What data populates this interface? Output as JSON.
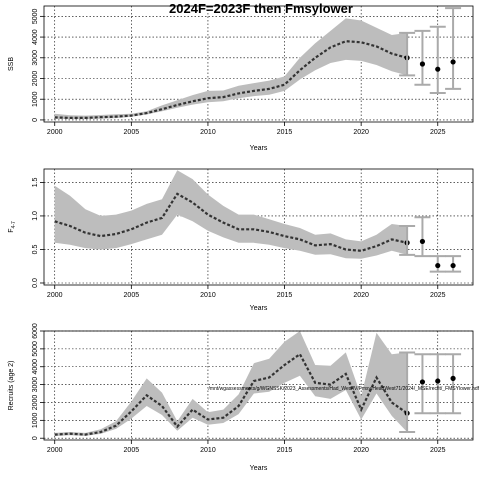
{
  "figure_title": "2024F=2023F then Fmsylower",
  "chart_data": [
    {
      "type": "line",
      "title": "",
      "xlabel": "Years",
      "ylabel": "SSB",
      "xlim": [
        1999.3,
        2027.3
      ],
      "ylim": [
        -100,
        5500
      ],
      "xticks": [
        2000,
        2005,
        2010,
        2015,
        2020,
        2025
      ],
      "yticks": [
        0,
        1000,
        2000,
        3000,
        4000,
        5000
      ],
      "grid": true,
      "x": [
        2000,
        2001,
        2002,
        2003,
        2004,
        2005,
        2006,
        2007,
        2008,
        2009,
        2010,
        2011,
        2012,
        2013,
        2014,
        2015,
        2016,
        2017,
        2018,
        2019,
        2020,
        2021,
        2022,
        2023
      ],
      "series": [
        {
          "role": "estimate",
          "values": [
            120,
            100,
            100,
            130,
            160,
            210,
            330,
            520,
            720,
            900,
            1050,
            1100,
            1280,
            1400,
            1500,
            1700,
            2400,
            3000,
            3500,
            3800,
            3750,
            3550,
            3200,
            3000
          ]
        },
        {
          "role": "lower",
          "values": [
            50,
            40,
            40,
            60,
            90,
            150,
            260,
            420,
            590,
            740,
            850,
            900,
            1050,
            1150,
            1220,
            1400,
            1950,
            2400,
            2750,
            2900,
            2850,
            2650,
            2350,
            2150
          ]
        },
        {
          "role": "upper",
          "values": [
            300,
            230,
            210,
            240,
            270,
            300,
            420,
            700,
            950,
            1200,
            1400,
            1420,
            1650,
            1780,
            1900,
            2100,
            3000,
            3700,
            4300,
            4900,
            4800,
            4450,
            4100,
            4200
          ]
        }
      ],
      "projection": [
        {
          "year": 2024,
          "value": 2700,
          "lower": 1700,
          "upper": 4300
        },
        {
          "year": 2025,
          "value": 2450,
          "lower": 1300,
          "upper": 4500
        },
        {
          "year": 2026,
          "value": 2800,
          "lower": 1500,
          "upper": 5400
        }
      ],
      "annotation": ""
    },
    {
      "type": "line",
      "title": "",
      "xlabel": "Years",
      "ylabel": "F",
      "ylabel_sub": "4-7",
      "xlim": [
        1999.3,
        2027.3
      ],
      "ylim": [
        -0.03,
        1.7
      ],
      "xticks": [
        2000,
        2005,
        2010,
        2015,
        2020,
        2025
      ],
      "yticks": [
        0.0,
        0.5,
        1.0,
        1.5
      ],
      "ytick_labels": [
        "0.0",
        "0.5",
        "1.0",
        "1.5"
      ],
      "grid": true,
      "x": [
        2000,
        2001,
        2002,
        2003,
        2004,
        2005,
        2006,
        2007,
        2008,
        2009,
        2010,
        2011,
        2012,
        2013,
        2014,
        2015,
        2016,
        2017,
        2018,
        2019,
        2020,
        2021,
        2022,
        2023
      ],
      "series": [
        {
          "role": "estimate",
          "values": [
            0.92,
            0.85,
            0.75,
            0.7,
            0.73,
            0.8,
            0.9,
            0.97,
            1.33,
            1.2,
            1.02,
            0.9,
            0.8,
            0.8,
            0.76,
            0.7,
            0.65,
            0.56,
            0.58,
            0.5,
            0.48,
            0.55,
            0.65,
            0.6
          ]
        },
        {
          "role": "lower",
          "values": [
            0.6,
            0.57,
            0.52,
            0.5,
            0.52,
            0.58,
            0.65,
            0.72,
            1.02,
            0.92,
            0.78,
            0.68,
            0.6,
            0.6,
            0.57,
            0.52,
            0.48,
            0.42,
            0.43,
            0.37,
            0.36,
            0.41,
            0.48,
            0.42
          ]
        },
        {
          "role": "upper",
          "values": [
            1.45,
            1.3,
            1.1,
            1.0,
            1.02,
            1.08,
            1.18,
            1.25,
            1.68,
            1.55,
            1.32,
            1.15,
            1.02,
            1.02,
            0.95,
            0.88,
            0.82,
            0.72,
            0.74,
            0.65,
            0.62,
            0.72,
            0.88,
            0.85
          ]
        }
      ],
      "projection": [
        {
          "year": 2024,
          "value": 0.62,
          "lower": 0.4,
          "upper": 0.98
        },
        {
          "year": 2025,
          "value": 0.26,
          "lower": 0.17,
          "upper": 0.4
        },
        {
          "year": 2026,
          "value": 0.26,
          "lower": 0.17,
          "upper": 0.4
        }
      ],
      "annotation": ""
    },
    {
      "type": "line",
      "title": "",
      "xlabel": "Years",
      "ylabel": "Recruits (age 2)",
      "xlim": [
        1999.3,
        2027.3
      ],
      "ylim": [
        -100,
        6000
      ],
      "xticks": [
        2000,
        2005,
        2010,
        2015,
        2020,
        2025
      ],
      "yticks": [
        0,
        1000,
        2000,
        3000,
        4000,
        5000,
        6000
      ],
      "grid": true,
      "x": [
        2000,
        2001,
        2002,
        2003,
        2004,
        2005,
        2006,
        2007,
        2008,
        2009,
        2010,
        2011,
        2012,
        2013,
        2014,
        2015,
        2016,
        2017,
        2018,
        2019,
        2020,
        2021,
        2022,
        2023
      ],
      "series": [
        {
          "role": "estimate",
          "values": [
            200,
            250,
            200,
            350,
            700,
            1500,
            2400,
            1800,
            650,
            1600,
            1050,
            1150,
            1800,
            3200,
            3400,
            4100,
            4700,
            3100,
            3000,
            3600,
            1600,
            3400,
            2000,
            1400
          ]
        },
        {
          "role": "lower",
          "values": [
            120,
            170,
            130,
            240,
            520,
            1100,
            1800,
            1300,
            420,
            1150,
            750,
            850,
            1350,
            2500,
            2600,
            3100,
            3500,
            2350,
            2200,
            2700,
            1050,
            2500,
            1250,
            350
          ]
        },
        {
          "role": "upper",
          "values": [
            300,
            350,
            300,
            500,
            950,
            2050,
            3350,
            2550,
            950,
            2200,
            1450,
            1600,
            2450,
            4200,
            4450,
            5400,
            6000,
            4100,
            4050,
            4800,
            2350,
            5900,
            4700,
            4800
          ]
        }
      ],
      "projection": [
        {
          "year": 2024,
          "value": 3150,
          "lower": 1400,
          "upper": 4700
        },
        {
          "year": 2025,
          "value": 3200,
          "lower": 1400,
          "upper": 4700
        },
        {
          "year": 2026,
          "value": 3350,
          "lower": 1400,
          "upper": 4700
        }
      ],
      "annotation": "/mnt/wgassessments/g/WGNSSK/2023_Assessments/Had_Wes/IV/Fmsy/HeadWest71/2024/_MSE/recfit/_FMSYlower.hdf"
    }
  ]
}
